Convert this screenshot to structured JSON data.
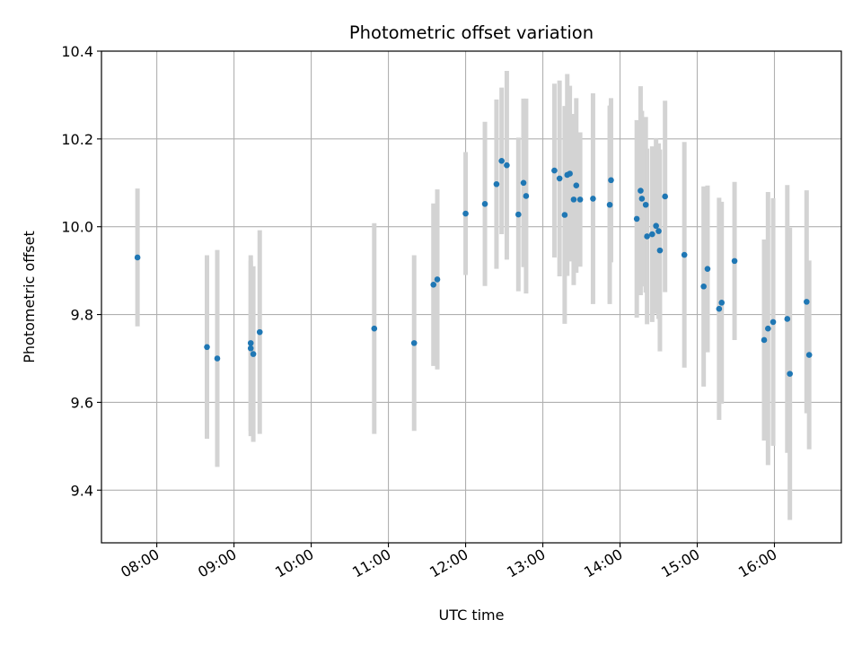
{
  "chart_data": {
    "type": "scatter",
    "title": "Photometric offset variation",
    "xlabel": "UTC time",
    "ylabel": "Photometric offset",
    "xlim": [
      "07:17",
      "16:52"
    ],
    "ylim": [
      9.28,
      10.4
    ],
    "grid": true,
    "x_ticks": [
      "08:00",
      "09:00",
      "10:00",
      "11:00",
      "12:00",
      "13:00",
      "14:00",
      "15:00",
      "16:00"
    ],
    "y_ticks": [
      "9.4",
      "9.6",
      "9.8",
      "10.0",
      "10.2",
      "10.4"
    ],
    "colors": {
      "point": "#1f77b4",
      "errorbar": "#d3d3d3",
      "grid": "#b0b0b0"
    },
    "series": [
      {
        "x_times": [
          "07:45",
          "08:39",
          "08:47",
          "09:13",
          "09:13",
          "09:15",
          "09:20",
          "10:49",
          "11:20",
          "11:35",
          "11:38",
          "12:00",
          "12:15",
          "12:24",
          "12:28",
          "12:32",
          "12:41",
          "12:45",
          "12:47",
          "13:09",
          "13:13",
          "13:17",
          "13:19",
          "13:21",
          "13:24",
          "13:26",
          "13:29",
          "13:39",
          "13:52",
          "13:53",
          "14:13",
          "14:16",
          "14:17",
          "14:20",
          "14:21",
          "14:25",
          "14:28",
          "14:30",
          "14:31",
          "14:35",
          "14:50",
          "15:05",
          "15:08",
          "15:17",
          "15:19",
          "15:29",
          "15:52",
          "15:55",
          "15:59",
          "16:10",
          "16:12",
          "16:25",
          "16:27"
        ],
        "y": [
          9.93,
          9.726,
          9.7,
          9.735,
          9.723,
          9.71,
          9.76,
          9.768,
          9.735,
          9.868,
          9.88,
          10.03,
          10.052,
          10.097,
          10.15,
          10.14,
          10.028,
          10.1,
          10.07,
          10.128,
          10.11,
          10.027,
          10.118,
          10.121,
          10.062,
          10.094,
          10.062,
          10.064,
          10.05,
          10.106,
          10.018,
          10.082,
          10.064,
          10.05,
          9.978,
          9.983,
          10.002,
          9.99,
          9.946,
          10.069,
          9.936,
          9.864,
          9.904,
          9.813,
          9.827,
          9.922,
          9.742,
          9.768,
          9.783,
          9.79,
          9.665,
          9.829,
          9.708
        ],
        "err": [
          0.157,
          0.209,
          0.247,
          0.2,
          0.2,
          0.2,
          0.232,
          0.24,
          0.2,
          0.185,
          0.205,
          0.14,
          0.187,
          0.193,
          0.167,
          0.215,
          0.175,
          0.192,
          0.222,
          0.198,
          0.223,
          0.248,
          0.23,
          0.2,
          0.195,
          0.199,
          0.153,
          0.24,
          0.226,
          0.187,
          0.225,
          0.238,
          0.2,
          0.2,
          0.2,
          0.2,
          0.2,
          0.2,
          0.23,
          0.218,
          0.257,
          0.228,
          0.19,
          0.253,
          0.23,
          0.18,
          0.229,
          0.311,
          0.282,
          0.305,
          0.333,
          0.254,
          0.215
        ]
      }
    ]
  }
}
